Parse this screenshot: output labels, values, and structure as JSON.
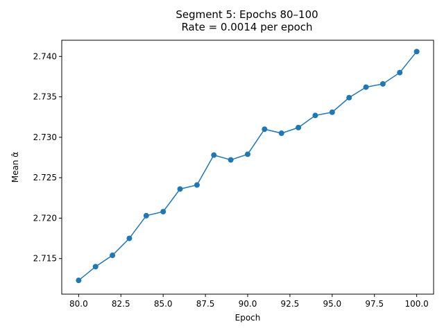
{
  "chart_data": {
    "type": "line",
    "title": "Segment 5: Epochs 80–100",
    "subtitle": "Rate = 0.0014 per epoch",
    "xlabel": "Epoch",
    "ylabel": "Mean α̂",
    "xlim": [
      79.0,
      101.0
    ],
    "ylim": [
      2.7106,
      2.742
    ],
    "xticks": [
      80.0,
      82.5,
      85.0,
      87.5,
      90.0,
      92.5,
      95.0,
      97.5,
      100.0
    ],
    "xtick_labels": [
      "80.0",
      "82.5",
      "85.0",
      "87.5",
      "90.0",
      "92.5",
      "95.0",
      "97.5",
      "100.0"
    ],
    "yticks": [
      2.715,
      2.72,
      2.725,
      2.73,
      2.735,
      2.74
    ],
    "ytick_labels": [
      "2.715",
      "2.720",
      "2.725",
      "2.730",
      "2.735",
      "2.740"
    ],
    "grid": false,
    "series": [
      {
        "color": "#1f77b4",
        "marker": "circle",
        "x": [
          80,
          81,
          82,
          83,
          84,
          85,
          86,
          87,
          88,
          89,
          90,
          91,
          92,
          93,
          94,
          95,
          96,
          97,
          98,
          99,
          100
        ],
        "y": [
          2.7123,
          2.714,
          2.7154,
          2.7175,
          2.7203,
          2.7208,
          2.7236,
          2.7241,
          2.7278,
          2.7272,
          2.7279,
          2.731,
          2.7305,
          2.7312,
          2.7327,
          2.7331,
          2.7349,
          2.7362,
          2.7366,
          2.738,
          2.7406
        ]
      }
    ]
  }
}
